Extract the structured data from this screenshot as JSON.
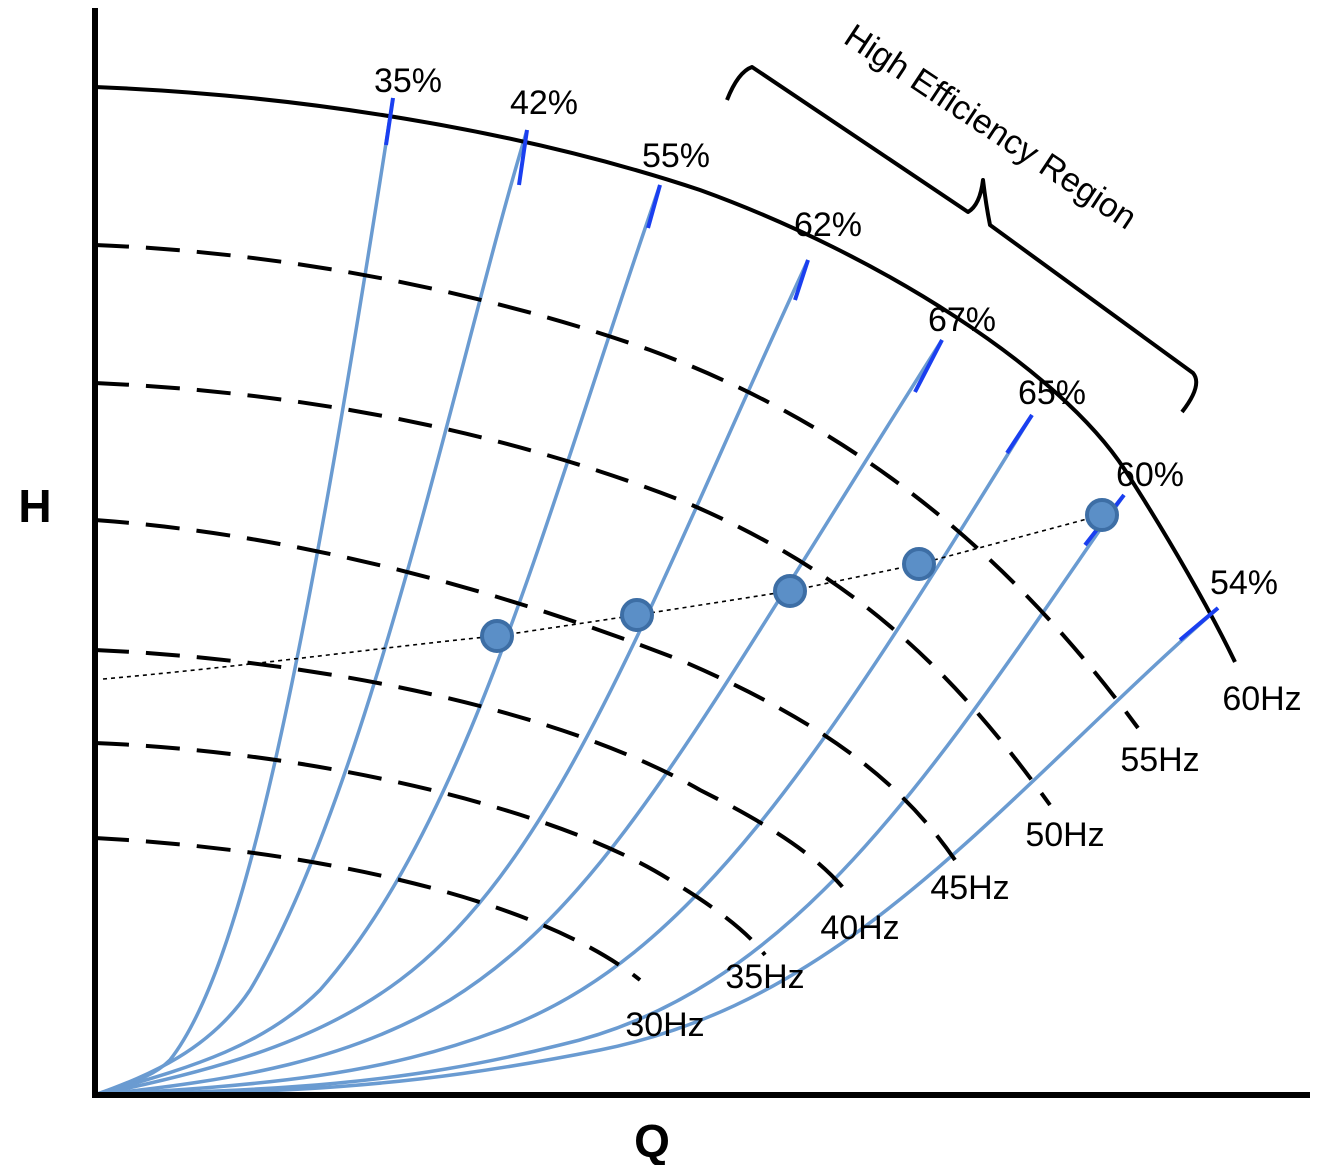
{
  "chart_data": {
    "type": "line",
    "title": "",
    "xlabel": "Q",
    "ylabel": "H",
    "grid": false,
    "legend": "none",
    "colors": {
      "axis": "#000000",
      "speed_curve": "#000000",
      "system_curve": "#6a9bd1",
      "efficiency_tick": "#1a3ff0",
      "operating_point_fill": "#5b8fc7",
      "operating_point_stroke": "#3d6ea5",
      "connector_line": "#000000"
    },
    "speed_curves": [
      {
        "label": "60Hz",
        "style": "solid"
      },
      {
        "label": "55Hz",
        "style": "dashed"
      },
      {
        "label": "50Hz",
        "style": "dashed"
      },
      {
        "label": "45Hz",
        "style": "dashed"
      },
      {
        "label": "40Hz",
        "style": "dashed"
      },
      {
        "label": "35Hz",
        "style": "dashed"
      },
      {
        "label": "30Hz",
        "style": "dashed"
      }
    ],
    "efficiency_curves": [
      {
        "label": "35%"
      },
      {
        "label": "42%"
      },
      {
        "label": "55%"
      },
      {
        "label": "62%"
      },
      {
        "label": "67%"
      },
      {
        "label": "65%"
      },
      {
        "label": "60%"
      },
      {
        "label": "54%"
      }
    ],
    "operating_points": 5,
    "connector_style": "dotted",
    "annotation": "High Efficiency Region"
  }
}
